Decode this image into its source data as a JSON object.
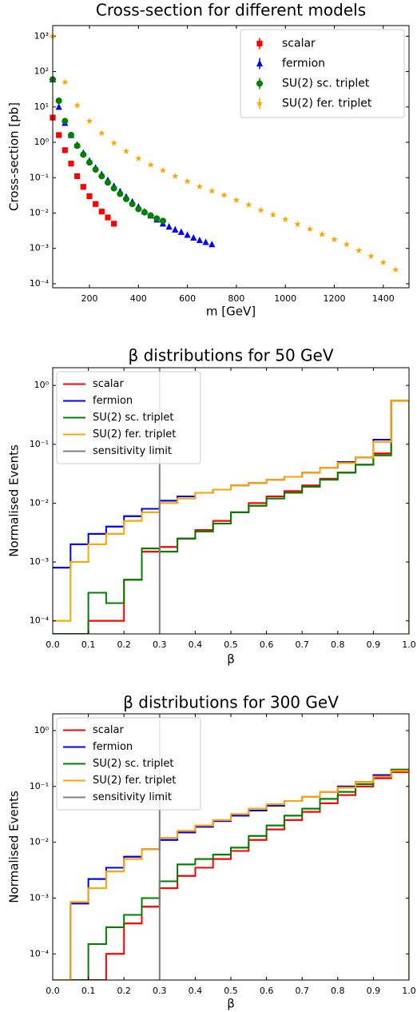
{
  "chart_data": [
    {
      "type": "scatter",
      "title": "Cross-section for different models",
      "x_label": "m [GeV]",
      "y_label": "Cross-section [pb]",
      "yscale": "log",
      "legend": "upper right",
      "xlim": [
        50,
        1505
      ],
      "xticks": [
        200,
        400,
        600,
        800,
        1000,
        1200,
        1400
      ],
      "ylim": [
        7.7e-05,
        2000
      ],
      "yticks": [
        {
          "value": 0.0001,
          "label": "10⁻⁴"
        },
        {
          "value": 0.001,
          "label": "10⁻³"
        },
        {
          "value": 0.01,
          "label": "10⁻²"
        },
        {
          "value": 0.1,
          "label": "10⁻¹"
        },
        {
          "value": 1,
          "label": "10⁰"
        },
        {
          "value": 10,
          "label": "10¹"
        },
        {
          "value": 100,
          "label": "10²"
        },
        {
          "value": 1000,
          "label": "10³"
        }
      ],
      "series": [
        {
          "name": "scalar",
          "color": "#ff0000",
          "marker": "square",
          "x": [
            50,
            75,
            100,
            125,
            150,
            175,
            200,
            225,
            250,
            275,
            300
          ],
          "values": [
            5,
            1.6,
            0.6,
            0.25,
            0.11,
            0.055,
            0.03,
            0.018,
            0.011,
            0.0075,
            0.005
          ]
        },
        {
          "name": "fermion",
          "color": "#0000ff",
          "marker": "triangle",
          "x": [
            50,
            75,
            100,
            125,
            150,
            175,
            200,
            225,
            250,
            275,
            300,
            325,
            350,
            375,
            400,
            425,
            450,
            475,
            500,
            525,
            550,
            575,
            600,
            625,
            650,
            675,
            700
          ],
          "values": [
            60,
            10,
            3.5,
            1.6,
            0.85,
            0.5,
            0.3,
            0.19,
            0.125,
            0.085,
            0.058,
            0.041,
            0.029,
            0.021,
            0.015,
            0.011,
            0.0085,
            0.0065,
            0.005,
            0.0041,
            0.0034,
            0.0029,
            0.0024,
            0.002,
            0.0017,
            0.0015,
            0.0013
          ]
        },
        {
          "name": "SU(2) sc. triplet",
          "color": "#008000",
          "marker": "circle",
          "x": [
            50,
            75,
            100,
            125,
            150,
            175,
            200,
            225,
            250,
            275,
            300,
            325,
            350,
            375,
            400,
            425,
            450,
            475,
            500
          ],
          "values": [
            60,
            15,
            4,
            1.6,
            0.8,
            0.45,
            0.27,
            0.17,
            0.11,
            0.073,
            0.05,
            0.035,
            0.025,
            0.018,
            0.013,
            0.0105,
            0.0085,
            0.007,
            0.006
          ]
        },
        {
          "name": "SU(2) fer. triplet",
          "color": "#ffa500",
          "marker": "star",
          "x": [
            50,
            100,
            150,
            200,
            250,
            300,
            350,
            400,
            450,
            500,
            550,
            600,
            650,
            700,
            750,
            800,
            850,
            900,
            950,
            1000,
            1050,
            1100,
            1150,
            1200,
            1250,
            1300,
            1350,
            1400,
            1450
          ],
          "values": [
            1000,
            50,
            11,
            4,
            1.8,
            0.95,
            0.56,
            0.35,
            0.23,
            0.16,
            0.11,
            0.079,
            0.056,
            0.042,
            0.032,
            0.023,
            0.017,
            0.012,
            0.0089,
            0.0066,
            0.0048,
            0.0035,
            0.0025,
            0.0018,
            0.0013,
            0.00087,
            0.0006,
            0.0004,
            0.00025
          ]
        }
      ]
    },
    {
      "type": "histogram",
      "title": "β distributions for 50 GeV",
      "x_label": "β",
      "y_label": "Normalised Events",
      "yscale": "log",
      "legend": "upper left",
      "xlim": [
        0,
        1
      ],
      "xticks": [
        {
          "value": 0,
          "label": "0.0"
        },
        0.1,
        0.2,
        0.3,
        0.4,
        0.5,
        0.6,
        0.7,
        0.8,
        0.9,
        {
          "value": 1,
          "label": "1.0"
        }
      ],
      "ylim": [
        6e-05,
        2
      ],
      "yticks": [
        {
          "value": 0.0001,
          "label": "10⁻⁴"
        },
        {
          "value": 0.001,
          "label": "10⁻³"
        },
        {
          "value": 0.01,
          "label": "10⁻²"
        },
        {
          "value": 0.1,
          "label": "10⁻¹"
        },
        {
          "value": 1,
          "label": "10⁰"
        }
      ],
      "bins": [
        0,
        0.05,
        0.1,
        0.15,
        0.2,
        0.25,
        0.3,
        0.35,
        0.4,
        0.45,
        0.5,
        0.55,
        0.6,
        0.65,
        0.7,
        0.75,
        0.8,
        0.85,
        0.9,
        0.95,
        1
      ],
      "series": [
        {
          "name": "scalar",
          "color": "#ff0000",
          "values": [
            0,
            0,
            0.0001,
            0.0001,
            0.0005,
            0.0015,
            0.0018,
            0.0025,
            0.0035,
            0.005,
            0.007,
            0.01,
            0.013,
            0.016,
            0.02,
            0.026,
            0.033,
            0.045,
            0.07,
            0.55
          ]
        },
        {
          "name": "fermion",
          "color": "#0000ff",
          "values": [
            0.0008,
            0.002,
            0.003,
            0.004,
            0.006,
            0.008,
            0.011,
            0.013,
            0.015,
            0.017,
            0.02,
            0.022,
            0.025,
            0.028,
            0.033,
            0.04,
            0.05,
            0.06,
            0.12,
            0.55
          ]
        },
        {
          "name": "SU(2) sc. triplet",
          "color": "#008000",
          "values": [
            0,
            0,
            0.0003,
            0.0002,
            0.0005,
            0.0017,
            0.0015,
            0.0025,
            0.0033,
            0.0045,
            0.007,
            0.009,
            0.012,
            0.015,
            0.019,
            0.025,
            0.033,
            0.045,
            0.065,
            0.55
          ]
        },
        {
          "name": "SU(2) fer. triplet",
          "color": "#ffa500",
          "values": [
            0.0001,
            0.001,
            0.002,
            0.003,
            0.005,
            0.007,
            0.01,
            0.012,
            0.015,
            0.017,
            0.02,
            0.022,
            0.025,
            0.028,
            0.033,
            0.04,
            0.048,
            0.06,
            0.11,
            0.55
          ]
        }
      ],
      "vlines": [
        {
          "name": "sensitivity limit",
          "color": "#808080",
          "x": 0.3
        }
      ]
    },
    {
      "type": "histogram",
      "title": "β distributions for 300 GeV",
      "x_label": "β",
      "y_label": "Normalised Events",
      "yscale": "log",
      "legend": "upper left",
      "xlim": [
        0,
        1
      ],
      "xticks": [
        {
          "value": 0,
          "label": "0.0"
        },
        0.1,
        0.2,
        0.3,
        0.4,
        0.5,
        0.6,
        0.7,
        0.8,
        0.9,
        {
          "value": 1,
          "label": "1.0"
        }
      ],
      "ylim": [
        3.4e-05,
        2
      ],
      "yticks": [
        {
          "value": 0.0001,
          "label": "10⁻⁴"
        },
        {
          "value": 0.001,
          "label": "10⁻³"
        },
        {
          "value": 0.01,
          "label": "10⁻²"
        },
        {
          "value": 0.1,
          "label": "10⁻¹"
        },
        {
          "value": 1,
          "label": "10⁰"
        }
      ],
      "bins": [
        0,
        0.05,
        0.1,
        0.15,
        0.2,
        0.25,
        0.3,
        0.35,
        0.4,
        0.45,
        0.5,
        0.55,
        0.6,
        0.65,
        0.7,
        0.75,
        0.8,
        0.85,
        0.9,
        0.95,
        1
      ],
      "series": [
        {
          "name": "scalar",
          "color": "#ff0000",
          "values": [
            0,
            0,
            0,
            0.0001,
            0.00035,
            0.0007,
            0.0015,
            0.0025,
            0.0035,
            0.005,
            0.007,
            0.011,
            0.017,
            0.025,
            0.035,
            0.05,
            0.07,
            0.1,
            0.14,
            0.18
          ]
        },
        {
          "name": "fermion",
          "color": "#0000ff",
          "values": [
            0,
            0.0008,
            0.0022,
            0.0035,
            0.0055,
            0.0075,
            0.011,
            0.015,
            0.019,
            0.024,
            0.03,
            0.037,
            0.045,
            0.055,
            0.065,
            0.08,
            0.1,
            0.12,
            0.16,
            0.2
          ]
        },
        {
          "name": "SU(2) sc. triplet",
          "color": "#008000",
          "values": [
            0,
            0,
            0.00015,
            0.0003,
            0.0005,
            0.001,
            0.002,
            0.004,
            0.005,
            0.006,
            0.008,
            0.013,
            0.02,
            0.03,
            0.04,
            0.06,
            0.08,
            0.11,
            0.15,
            0.2
          ]
        },
        {
          "name": "SU(2) fer. triplet",
          "color": "#ffa500",
          "values": [
            0,
            0.00085,
            0.0015,
            0.003,
            0.005,
            0.0075,
            0.012,
            0.016,
            0.02,
            0.025,
            0.032,
            0.04,
            0.048,
            0.055,
            0.065,
            0.08,
            0.095,
            0.12,
            0.15,
            0.19
          ]
        }
      ],
      "vlines": [
        {
          "name": "sensitivity limit",
          "color": "#808080",
          "x": 0.3
        }
      ]
    }
  ]
}
